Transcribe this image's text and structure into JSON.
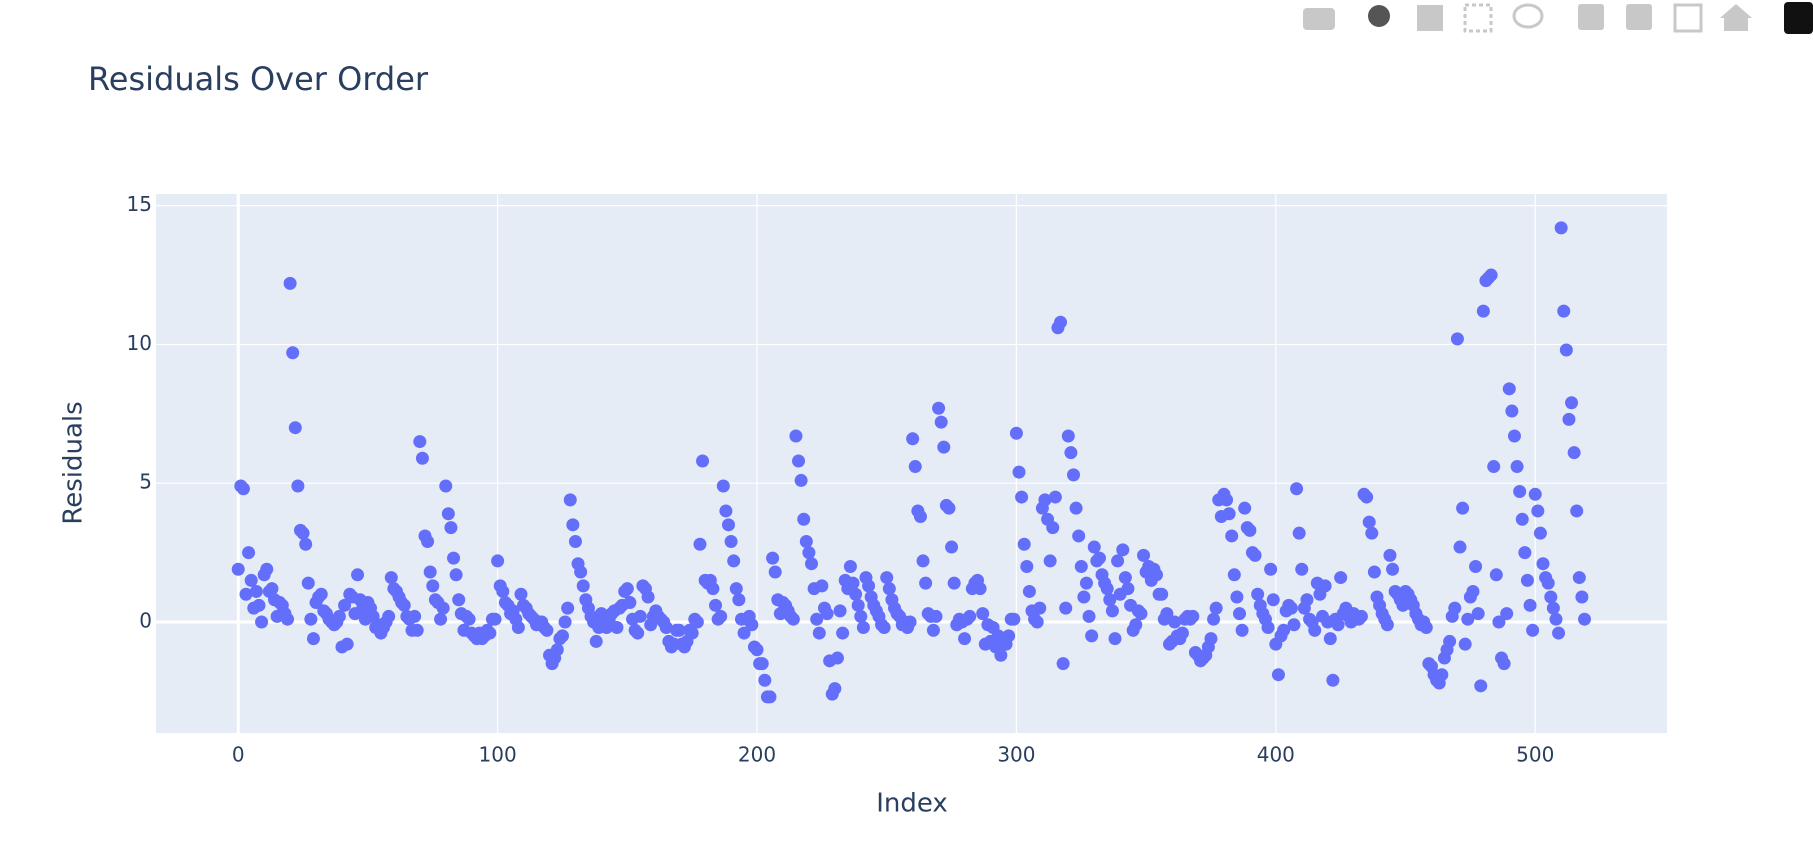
{
  "chart_data": {
    "type": "scatter",
    "title": "Residuals Over Order",
    "x_label": "Index",
    "y_label": "Residuals",
    "color": "#636efa",
    "grid": true,
    "xlim": [
      -31.7,
      550.8
    ],
    "ylim": [
      -4,
      15.42
    ],
    "xticks": [
      0,
      100,
      200,
      300,
      400,
      500
    ],
    "yticks": [
      0,
      5,
      10,
      15
    ],
    "x": [
      0,
      1,
      2,
      3,
      4,
      5,
      6,
      7,
      8,
      9,
      10,
      11,
      12,
      13,
      14,
      15,
      16,
      17,
      18,
      19,
      20,
      21,
      22,
      23,
      24,
      25,
      26,
      27,
      28,
      29,
      30,
      31,
      32,
      33,
      34,
      35,
      36,
      37,
      38,
      39,
      40,
      41,
      42,
      43,
      44,
      45,
      46,
      47,
      48,
      49,
      50,
      51,
      52,
      53,
      54,
      55,
      56,
      57,
      58,
      59,
      60,
      61,
      62,
      63,
      64,
      65,
      66,
      67,
      68,
      69,
      70,
      71,
      72,
      73,
      74,
      75,
      76,
      77,
      78,
      79,
      80,
      81,
      82,
      83,
      84,
      85,
      86,
      87,
      88,
      89,
      90,
      91,
      92,
      93,
      94,
      95,
      96,
      97,
      98,
      99,
      100,
      101,
      102,
      103,
      104,
      105,
      106,
      107,
      108,
      109,
      110,
      111,
      112,
      113,
      114,
      115,
      116,
      117,
      118,
      119,
      120,
      121,
      122,
      123,
      124,
      125,
      126,
      127,
      128,
      129,
      130,
      131,
      132,
      133,
      134,
      135,
      136,
      137,
      138,
      139,
      140,
      141,
      142,
      143,
      144,
      145,
      146,
      147,
      148,
      149,
      150,
      151,
      152,
      153,
      154,
      155,
      156,
      157,
      158,
      159,
      160,
      161,
      162,
      163,
      164,
      165,
      166,
      167,
      168,
      169,
      170,
      171,
      172,
      173,
      174,
      175,
      176,
      177,
      178,
      179,
      180,
      181,
      182,
      183,
      184,
      185,
      186,
      187,
      188,
      189,
      190,
      191,
      192,
      193,
      194,
      195,
      196,
      197,
      198,
      199,
      200,
      201,
      202,
      203,
      204,
      205,
      206,
      207,
      208,
      209,
      210,
      211,
      212,
      213,
      214,
      215,
      216,
      217,
      218,
      219,
      220,
      221,
      222,
      223,
      224,
      225,
      226,
      227,
      228,
      229,
      230,
      231,
      232,
      233,
      234,
      235,
      236,
      237,
      238,
      239,
      240,
      241,
      242,
      243,
      244,
      245,
      246,
      247,
      248,
      249,
      250,
      251,
      252,
      253,
      254,
      255,
      256,
      257,
      258,
      259,
      260,
      261,
      262,
      263,
      264,
      265,
      266,
      267,
      268,
      269,
      270,
      271,
      272,
      273,
      274,
      275,
      276,
      277,
      278,
      279,
      280,
      281,
      282,
      283,
      284,
      285,
      286,
      287,
      288,
      289,
      290,
      291,
      292,
      293,
      294,
      295,
      296,
      297,
      298,
      299,
      300,
      301,
      302,
      303,
      304,
      305,
      306,
      307,
      308,
      309,
      310,
      311,
      312,
      313,
      314,
      315,
      316,
      317,
      318,
      319,
      320,
      321,
      322,
      323,
      324,
      325,
      326,
      327,
      328,
      329,
      330,
      331,
      332,
      333,
      334,
      335,
      336,
      337,
      338,
      339,
      340,
      341,
      342,
      343,
      344,
      345,
      346,
      347,
      348,
      349,
      350,
      351,
      352,
      353,
      354,
      355,
      356,
      357,
      358,
      359,
      360,
      361,
      362,
      363,
      364,
      365,
      366,
      367,
      368,
      369,
      370,
      371,
      372,
      373,
      374,
      375,
      376,
      377,
      378,
      379,
      380,
      381,
      382,
      383,
      384,
      385,
      386,
      387,
      388,
      389,
      390,
      391,
      392,
      393,
      394,
      395,
      396,
      397,
      398,
      399,
      400,
      401,
      402,
      403,
      404,
      405,
      406,
      407,
      408,
      409,
      410,
      411,
      412,
      413,
      414,
      415,
      416,
      417,
      418,
      419,
      420,
      421,
      422,
      423,
      424,
      425,
      426,
      427,
      428,
      429,
      430,
      431,
      432,
      433,
      434,
      435,
      436,
      437,
      438,
      439,
      440,
      441,
      442,
      443,
      444,
      445,
      446,
      447,
      448,
      449,
      450,
      451,
      452,
      453,
      454,
      455,
      456,
      457,
      458,
      459,
      460,
      461,
      462,
      463,
      464,
      465,
      466,
      467,
      468,
      469,
      470,
      471,
      472,
      473,
      474,
      475,
      476,
      477,
      478,
      479,
      480,
      481,
      482,
      483,
      484,
      485,
      486,
      487,
      488,
      489,
      490,
      491,
      492,
      493,
      494,
      495,
      496,
      497,
      498,
      499,
      500,
      501,
      502,
      503,
      504,
      505,
      506,
      507,
      508,
      509,
      510,
      511,
      512,
      513,
      514,
      515,
      516,
      517,
      518,
      519
    ],
    "values": [
      1.9,
      4.9,
      4.8,
      1.0,
      2.5,
      1.5,
      0.5,
      1.1,
      0.6,
      0.0,
      1.7,
      1.9,
      1.1,
      1.2,
      0.8,
      0.2,
      0.7,
      0.6,
      0.3,
      0.1,
      12.2,
      9.7,
      7.0,
      4.9,
      3.3,
      3.2,
      2.8,
      1.4,
      0.1,
      -0.6,
      0.7,
      0.9,
      1.0,
      0.4,
      0.3,
      0.1,
      0.0,
      -0.1,
      0.0,
      0.2,
      -0.9,
      0.6,
      -0.8,
      1.0,
      0.9,
      0.3,
      1.7,
      0.8,
      0.5,
      0.1,
      0.7,
      0.5,
      0.2,
      -0.2,
      -0.1,
      -0.4,
      -0.2,
      0.0,
      0.2,
      1.6,
      1.2,
      1.1,
      0.9,
      0.7,
      0.6,
      0.2,
      0.1,
      -0.3,
      0.2,
      -0.3,
      6.5,
      5.9,
      3.1,
      2.9,
      1.8,
      1.3,
      0.8,
      0.7,
      0.1,
      0.5,
      4.9,
      3.9,
      3.4,
      2.3,
      1.7,
      0.8,
      0.3,
      -0.3,
      0.2,
      0.1,
      -0.4,
      -0.5,
      -0.6,
      -0.4,
      -0.6,
      -0.5,
      -0.3,
      -0.4,
      0.1,
      0.1,
      2.2,
      1.3,
      1.1,
      0.7,
      0.6,
      0.3,
      0.4,
      0.1,
      -0.2,
      1.0,
      0.6,
      0.5,
      0.3,
      0.2,
      0.1,
      -0.1,
      0.0,
      0.0,
      -0.2,
      -0.3,
      -1.2,
      -1.5,
      -1.3,
      -1.0,
      -0.6,
      -0.5,
      0.0,
      0.5,
      4.4,
      3.5,
      2.9,
      2.1,
      1.8,
      1.3,
      0.8,
      0.5,
      0.2,
      0.0,
      -0.7,
      -0.2,
      0.3,
      -0.1,
      -0.2,
      0.1,
      0.3,
      0.4,
      -0.2,
      0.5,
      0.6,
      1.1,
      1.2,
      0.7,
      0.1,
      -0.3,
      -0.4,
      0.2,
      1.3,
      1.2,
      0.9,
      -0.1,
      0.2,
      0.4,
      0.2,
      0.1,
      0.0,
      -0.2,
      -0.7,
      -0.9,
      -0.8,
      -0.3,
      -0.3,
      -0.8,
      -0.9,
      -0.7,
      -0.3,
      -0.4,
      0.1,
      0.0,
      2.8,
      5.8,
      1.5,
      1.4,
      1.5,
      1.2,
      0.6,
      0.1,
      0.2,
      4.9,
      4.0,
      3.5,
      2.9,
      2.2,
      1.2,
      0.8,
      0.1,
      -0.4,
      0.1,
      0.2,
      -0.1,
      -0.9,
      -1.0,
      -1.5,
      -1.5,
      -2.1,
      -2.7,
      -2.7,
      2.3,
      1.8,
      0.8,
      0.3,
      0.7,
      0.6,
      0.4,
      0.2,
      0.1,
      6.7,
      5.8,
      5.1,
      3.7,
      2.9,
      2.5,
      2.1,
      1.2,
      0.1,
      -0.4,
      1.3,
      0.5,
      0.3,
      -1.4,
      -2.6,
      -2.4,
      -1.3,
      0.4,
      -0.4,
      1.5,
      1.2,
      2.0,
      1.4,
      1.0,
      0.6,
      0.2,
      -0.2,
      1.6,
      1.3,
      0.9,
      0.6,
      0.4,
      0.2,
      -0.1,
      -0.2,
      1.6,
      1.2,
      0.8,
      0.5,
      0.3,
      0.2,
      -0.1,
      0.0,
      -0.2,
      0.0,
      6.6,
      5.6,
      4.0,
      3.8,
      2.2,
      1.4,
      0.3,
      0.2,
      -0.3,
      0.2,
      7.7,
      7.2,
      6.3,
      4.2,
      4.1,
      2.7,
      1.4,
      -0.1,
      0.1,
      0.0,
      -0.6,
      0.1,
      0.2,
      1.2,
      1.4,
      1.5,
      1.2,
      0.3,
      -0.8,
      -0.1,
      -0.7,
      -0.2,
      -0.9,
      -0.5,
      -1.2,
      -0.6,
      -0.8,
      -0.5,
      0.1,
      0.1,
      6.8,
      5.4,
      4.5,
      2.8,
      2.0,
      1.1,
      0.4,
      0.1,
      0.0,
      0.5,
      4.1,
      4.4,
      3.7,
      2.2,
      3.4,
      4.5,
      10.6,
      10.8,
      -1.5,
      0.5,
      6.7,
      6.1,
      5.3,
      4.1,
      3.1,
      2.0,
      0.9,
      1.4,
      0.2,
      -0.5,
      2.7,
      2.2,
      2.3,
      1.7,
      1.4,
      1.2,
      0.8,
      0.4,
      -0.6,
      2.2,
      1.0,
      2.6,
      1.6,
      1.2,
      0.6,
      -0.3,
      -0.1,
      0.4,
      0.3,
      2.4,
      1.8,
      2.0,
      1.5,
      1.9,
      1.7,
      1.0,
      1.0,
      0.1,
      0.3,
      -0.8,
      -0.7,
      0.0,
      -0.5,
      -0.6,
      -0.4,
      0.1,
      0.2,
      0.1,
      0.2,
      -1.1,
      -1.2,
      -1.4,
      -1.3,
      -1.2,
      -0.9,
      -0.6,
      0.1,
      0.5,
      4.4,
      3.8,
      4.6,
      4.4,
      3.9,
      3.1,
      1.7,
      0.9,
      0.3,
      -0.3,
      4.1,
      3.4,
      3.3,
      2.5,
      2.4,
      1.0,
      0.6,
      0.3,
      0.1,
      -0.2,
      1.9,
      0.8,
      -0.8,
      -1.9,
      -0.5,
      -0.3,
      0.4,
      0.6,
      0.5,
      -0.1,
      4.8,
      3.2,
      1.9,
      0.5,
      0.8,
      0.1,
      0.0,
      -0.3,
      1.4,
      1.0,
      0.2,
      1.3,
      0.0,
      -0.6,
      -2.1,
      0.1,
      -0.1,
      1.6,
      0.3,
      0.5,
      0.2,
      0.0,
      0.3,
      0.1,
      0.1,
      0.2,
      4.6,
      4.5,
      3.6,
      3.2,
      1.8,
      0.9,
      0.6,
      0.3,
      0.1,
      -0.1,
      2.4,
      1.9,
      1.1,
      1.0,
      0.8,
      0.6,
      1.1,
      1.0,
      0.8,
      0.6,
      0.3,
      0.1,
      -0.1,
      0.0,
      -0.2,
      -1.5,
      -1.6,
      -1.9,
      -2.1,
      -2.2,
      -1.9,
      -1.3,
      -1.0,
      -0.7,
      0.2,
      0.5,
      10.2,
      2.7,
      4.1,
      -0.8,
      0.1,
      0.9,
      1.1,
      2.0,
      0.3,
      -2.3,
      11.2,
      12.3,
      12.4,
      12.5,
      5.6,
      1.7,
      0.0,
      -1.3,
      -1.5,
      0.3,
      8.4,
      7.6,
      6.7,
      5.6,
      4.7,
      3.7,
      2.5,
      1.5,
      0.6,
      -0.3,
      4.6,
      4.0,
      3.2,
      2.1,
      1.6,
      1.4,
      0.9,
      0.5,
      0.1,
      -0.4,
      14.2,
      11.2,
      9.8,
      7.3,
      7.9,
      6.1,
      4.0,
      1.6,
      0.9,
      0.1
    ]
  }
}
